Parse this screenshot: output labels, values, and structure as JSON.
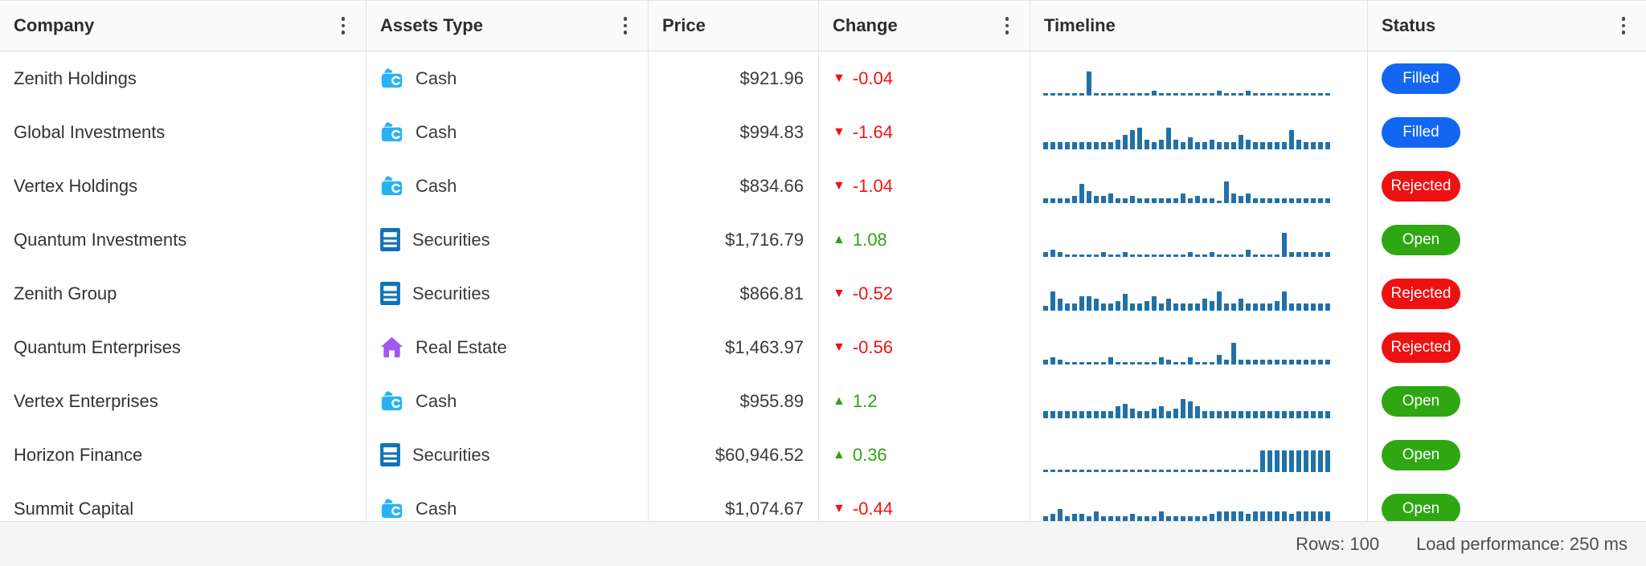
{
  "header": {
    "columns": [
      {
        "label": "Company",
        "has_menu": true
      },
      {
        "label": "Assets Type",
        "has_menu": true
      },
      {
        "label": "Price",
        "has_menu": false
      },
      {
        "label": "Change",
        "has_menu": true
      },
      {
        "label": "Timeline",
        "has_menu": false
      },
      {
        "label": "Status",
        "has_menu": true
      }
    ]
  },
  "rows": [
    {
      "company": "Zenith Holdings",
      "asset_type": "Cash",
      "asset_icon": "wallet-icon",
      "price": "$921.96",
      "change": "-0.04",
      "change_direction": "down",
      "status": "Filled",
      "timeline": [
        1,
        1,
        1,
        1,
        1,
        1,
        10,
        1,
        1,
        1,
        1,
        1,
        1,
        1,
        1,
        2,
        1,
        1,
        1,
        1,
        1,
        1,
        1,
        1,
        2,
        1,
        1,
        1,
        2,
        1,
        1,
        1,
        1,
        1,
        1,
        1,
        1,
        1,
        1,
        1
      ]
    },
    {
      "company": "Global Investments",
      "asset_type": "Cash",
      "asset_icon": "wallet-icon",
      "price": "$994.83",
      "change": "-1.64",
      "change_direction": "down",
      "status": "Filled",
      "timeline": [
        3,
        3,
        3,
        3,
        3,
        3,
        3,
        3,
        3,
        3,
        4,
        6,
        8,
        9,
        4,
        3,
        4,
        9,
        4,
        3,
        5,
        3,
        3,
        4,
        3,
        3,
        3,
        6,
        4,
        3,
        3,
        3,
        3,
        3,
        8,
        4,
        3,
        3,
        3,
        3
      ]
    },
    {
      "company": "Vertex Holdings",
      "asset_type": "Cash",
      "asset_icon": "wallet-icon",
      "price": "$834.66",
      "change": "-1.04",
      "change_direction": "down",
      "status": "Rejected",
      "timeline": [
        2,
        2,
        2,
        2,
        3,
        8,
        5,
        3,
        3,
        4,
        2,
        2,
        3,
        2,
        2,
        2,
        2,
        2,
        2,
        4,
        2,
        3,
        2,
        2,
        1,
        9,
        4,
        3,
        4,
        2,
        2,
        2,
        2,
        2,
        2,
        2,
        2,
        2,
        2,
        2
      ]
    },
    {
      "company": "Quantum Investments",
      "asset_type": "Securities",
      "asset_icon": "document-icon",
      "price": "$1,716.79",
      "change": "1.08",
      "change_direction": "up",
      "status": "Open",
      "timeline": [
        2,
        3,
        2,
        1,
        1,
        1,
        1,
        1,
        2,
        1,
        1,
        2,
        1,
        1,
        1,
        1,
        1,
        1,
        1,
        1,
        2,
        1,
        1,
        2,
        1,
        1,
        1,
        1,
        3,
        1,
        1,
        1,
        1,
        10,
        2,
        2,
        2,
        2,
        2,
        2
      ]
    },
    {
      "company": "Zenith Group",
      "asset_type": "Securities",
      "asset_icon": "document-icon",
      "price": "$866.81",
      "change": "-0.52",
      "change_direction": "down",
      "status": "Rejected",
      "timeline": [
        2,
        8,
        5,
        3,
        3,
        6,
        6,
        5,
        3,
        3,
        4,
        7,
        3,
        3,
        4,
        6,
        3,
        5,
        3,
        3,
        3,
        3,
        5,
        4,
        8,
        3,
        3,
        5,
        3,
        3,
        3,
        3,
        4,
        8,
        3,
        3,
        3,
        3,
        3,
        3
      ]
    },
    {
      "company": "Quantum Enterprises",
      "asset_type": "Real Estate",
      "asset_icon": "house-icon",
      "price": "$1,463.97",
      "change": "-0.56",
      "change_direction": "down",
      "status": "Rejected",
      "timeline": [
        2,
        3,
        2,
        1,
        1,
        1,
        1,
        1,
        1,
        3,
        1,
        1,
        1,
        1,
        1,
        1,
        3,
        2,
        1,
        1,
        3,
        1,
        1,
        1,
        4,
        2,
        9,
        2,
        2,
        2,
        2,
        2,
        2,
        2,
        2,
        2,
        2,
        2,
        2,
        2
      ]
    },
    {
      "company": "Vertex Enterprises",
      "asset_type": "Cash",
      "asset_icon": "wallet-icon",
      "price": "$955.89",
      "change": "1.2",
      "change_direction": "up",
      "status": "Open",
      "timeline": [
        3,
        3,
        3,
        3,
        3,
        3,
        3,
        3,
        3,
        3,
        5,
        6,
        4,
        3,
        3,
        4,
        5,
        3,
        4,
        8,
        7,
        5,
        3,
        3,
        3,
        3,
        3,
        3,
        3,
        3,
        3,
        3,
        3,
        3,
        3,
        3,
        3,
        3,
        3,
        3
      ]
    },
    {
      "company": "Horizon Finance",
      "asset_type": "Securities",
      "asset_icon": "document-icon",
      "price": "$60,946.52",
      "change": "0.36",
      "change_direction": "up",
      "status": "Open",
      "timeline": [
        1,
        1,
        1,
        1,
        1,
        1,
        1,
        1,
        1,
        1,
        1,
        1,
        1,
        1,
        1,
        1,
        1,
        1,
        1,
        1,
        1,
        1,
        1,
        1,
        1,
        1,
        1,
        1,
        1,
        1,
        9,
        9,
        9,
        9,
        9,
        9,
        9,
        9,
        9,
        9
      ]
    },
    {
      "company": "Summit Capital",
      "asset_type": "Cash",
      "asset_icon": "wallet-icon",
      "price": "$1,074.67",
      "change": "-0.44",
      "change_direction": "down",
      "status": "Open",
      "timeline": [
        4,
        5,
        7,
        4,
        5,
        5,
        4,
        6,
        4,
        4,
        4,
        4,
        5,
        4,
        4,
        4,
        6,
        4,
        4,
        4,
        4,
        4,
        4,
        5,
        6,
        6,
        6,
        6,
        5,
        6,
        6,
        6,
        6,
        6,
        5,
        6,
        6,
        6,
        6,
        6
      ]
    }
  ],
  "footer": {
    "rows_count": "Rows: 100",
    "load_performance": "Load performance: 250 ms"
  },
  "colors": {
    "cash_icon": "#29b2f3",
    "securities_icon": "#1272b5",
    "real_estate_icon": "#a455f2",
    "sparkline": "#2171a8",
    "change_up": "#2da512",
    "change_down": "#f21212",
    "status_filled": "#1266f1",
    "status_rejected": "#ee1111",
    "status_open": "#2fa713"
  },
  "glyphs": {
    "up": "▲",
    "down": "▼"
  }
}
